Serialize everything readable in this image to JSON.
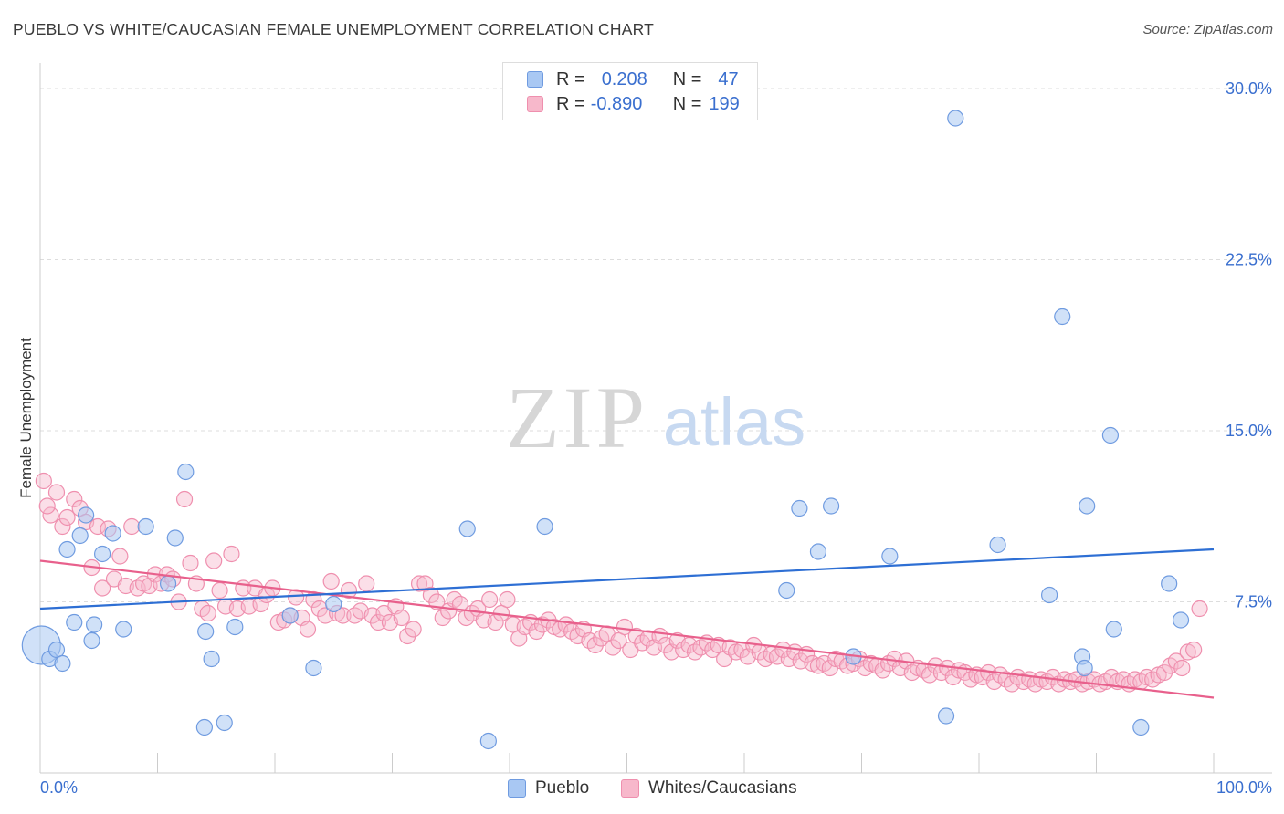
{
  "title": "PUEBLO VS WHITE/CAUCASIAN FEMALE UNEMPLOYMENT CORRELATION CHART",
  "source": "Source: ZipAtlas.com",
  "watermark": {
    "zip": "ZIP",
    "atlas": "atlas"
  },
  "legend": {
    "pueblo": {
      "r_label": "R =",
      "r_value": "0.208",
      "n_label": "N =",
      "n_value": "47"
    },
    "whites": {
      "r_label": "R =",
      "r_value": "-0.890",
      "n_label": "N =",
      "n_value": "199"
    }
  },
  "colors": {
    "pueblo_fill": "#a9c8f3",
    "pueblo_stroke": "#6f9be0",
    "pueblo_line": "#2e6fd4",
    "whites_fill": "#f7b8cb",
    "whites_stroke": "#ef8fae",
    "whites_line": "#e8608c",
    "axis_label": "#3a6fcf",
    "grid": "#dddddd"
  },
  "chart_data": {
    "type": "scatter",
    "title": "PUEBLO VS WHITE/CAUCASIAN FEMALE UNEMPLOYMENT CORRELATION CHART",
    "xlabel": "",
    "ylabel": "Female Unemployment",
    "xlim": [
      0,
      100
    ],
    "ylim": [
      0,
      30
    ],
    "x_tick_labels": [
      "0.0%",
      "100.0%"
    ],
    "y_ticks": [
      7.5,
      15.0,
      22.5,
      30.0
    ],
    "y_tick_labels": [
      "7.5%",
      "15.0%",
      "22.5%",
      "30.0%"
    ],
    "grid": true,
    "legend_position": "bottom-center",
    "series": [
      {
        "name": "Pueblo",
        "trend": {
          "x": [
            0,
            100
          ],
          "y": [
            7.2,
            9.8
          ]
        },
        "points": [
          [
            0.1,
            5.6
          ],
          [
            0.8,
            5.0
          ],
          [
            1.4,
            5.4
          ],
          [
            1.9,
            4.8
          ],
          [
            2.3,
            9.8
          ],
          [
            2.9,
            6.6
          ],
          [
            3.4,
            10.4
          ],
          [
            3.9,
            11.3
          ],
          [
            4.4,
            5.8
          ],
          [
            4.6,
            6.5
          ],
          [
            5.3,
            9.6
          ],
          [
            6.2,
            10.5
          ],
          [
            7.1,
            6.3
          ],
          [
            9.0,
            10.8
          ],
          [
            10.9,
            8.3
          ],
          [
            11.5,
            10.3
          ],
          [
            12.4,
            13.2
          ],
          [
            14.0,
            2.0
          ],
          [
            14.1,
            6.2
          ],
          [
            14.6,
            5.0
          ],
          [
            15.7,
            2.2
          ],
          [
            16.6,
            6.4
          ],
          [
            21.3,
            6.9
          ],
          [
            23.3,
            4.6
          ],
          [
            25.0,
            7.4
          ],
          [
            36.4,
            10.7
          ],
          [
            38.2,
            1.4
          ],
          [
            43.0,
            10.8
          ],
          [
            63.6,
            8.0
          ],
          [
            64.7,
            11.6
          ],
          [
            66.3,
            9.7
          ],
          [
            67.4,
            11.7
          ],
          [
            69.3,
            5.1
          ],
          [
            72.4,
            9.5
          ],
          [
            77.2,
            2.5
          ],
          [
            78.0,
            28.7
          ],
          [
            81.6,
            10.0
          ],
          [
            86.0,
            7.8
          ],
          [
            87.1,
            20.0
          ],
          [
            88.8,
            5.1
          ],
          [
            89.0,
            4.6
          ],
          [
            89.2,
            11.7
          ],
          [
            91.2,
            14.8
          ],
          [
            91.5,
            6.3
          ],
          [
            93.8,
            2.0
          ],
          [
            96.2,
            8.3
          ],
          [
            97.2,
            6.7
          ]
        ]
      },
      {
        "name": "Whites/Caucasians",
        "trend": {
          "x": [
            0,
            100
          ],
          "y": [
            9.3,
            3.3
          ]
        },
        "points": [
          [
            0.3,
            12.8
          ],
          [
            0.9,
            11.3
          ],
          [
            1.4,
            12.3
          ],
          [
            1.9,
            10.8
          ],
          [
            2.3,
            11.2
          ],
          [
            2.9,
            12.0
          ],
          [
            3.4,
            11.6
          ],
          [
            3.9,
            11.0
          ],
          [
            4.4,
            9.0
          ],
          [
            4.9,
            10.8
          ],
          [
            5.3,
            8.1
          ],
          [
            5.8,
            10.7
          ],
          [
            6.3,
            8.5
          ],
          [
            6.8,
            9.5
          ],
          [
            7.3,
            8.2
          ],
          [
            7.8,
            10.8
          ],
          [
            8.3,
            8.1
          ],
          [
            8.8,
            8.3
          ],
          [
            9.3,
            8.2
          ],
          [
            9.8,
            8.7
          ],
          [
            10.3,
            8.3
          ],
          [
            10.8,
            8.7
          ],
          [
            11.3,
            8.5
          ],
          [
            11.8,
            7.5
          ],
          [
            12.3,
            12.0
          ],
          [
            12.8,
            9.2
          ],
          [
            13.3,
            8.3
          ],
          [
            13.8,
            7.2
          ],
          [
            14.3,
            7.0
          ],
          [
            14.8,
            9.3
          ],
          [
            15.3,
            8.0
          ],
          [
            15.8,
            7.3
          ],
          [
            16.3,
            9.6
          ],
          [
            16.8,
            7.2
          ],
          [
            17.3,
            8.1
          ],
          [
            17.8,
            7.3
          ],
          [
            18.3,
            8.1
          ],
          [
            18.8,
            7.4
          ],
          [
            19.3,
            7.8
          ],
          [
            19.8,
            8.1
          ],
          [
            20.3,
            6.6
          ],
          [
            20.8,
            6.7
          ],
          [
            21.3,
            6.9
          ],
          [
            21.8,
            7.7
          ],
          [
            22.3,
            6.8
          ],
          [
            22.8,
            6.3
          ],
          [
            23.3,
            7.6
          ],
          [
            23.8,
            7.2
          ],
          [
            24.3,
            6.9
          ],
          [
            24.8,
            8.4
          ],
          [
            25.3,
            7.0
          ],
          [
            25.8,
            6.9
          ],
          [
            26.3,
            8.0
          ],
          [
            26.8,
            6.9
          ],
          [
            27.3,
            7.1
          ],
          [
            27.8,
            8.3
          ],
          [
            28.3,
            6.9
          ],
          [
            28.8,
            6.6
          ],
          [
            29.3,
            7.0
          ],
          [
            29.8,
            6.6
          ],
          [
            30.3,
            7.3
          ],
          [
            30.8,
            6.8
          ],
          [
            31.3,
            6.0
          ],
          [
            31.8,
            6.3
          ],
          [
            32.3,
            8.3
          ],
          [
            32.8,
            8.3
          ],
          [
            33.3,
            7.8
          ],
          [
            33.8,
            7.5
          ],
          [
            34.3,
            6.8
          ],
          [
            34.8,
            7.1
          ],
          [
            35.3,
            7.6
          ],
          [
            35.8,
            7.4
          ],
          [
            36.3,
            6.8
          ],
          [
            36.8,
            7.0
          ],
          [
            37.3,
            7.2
          ],
          [
            37.8,
            6.7
          ],
          [
            38.3,
            7.6
          ],
          [
            38.8,
            6.6
          ],
          [
            39.3,
            7.0
          ],
          [
            39.8,
            7.6
          ],
          [
            40.3,
            6.5
          ],
          [
            40.8,
            5.9
          ],
          [
            41.3,
            6.4
          ],
          [
            41.8,
            6.6
          ],
          [
            42.3,
            6.2
          ],
          [
            42.8,
            6.5
          ],
          [
            43.3,
            6.7
          ],
          [
            43.8,
            6.4
          ],
          [
            44.3,
            6.3
          ],
          [
            44.8,
            6.5
          ],
          [
            45.3,
            6.2
          ],
          [
            45.8,
            6.0
          ],
          [
            46.3,
            6.3
          ],
          [
            46.8,
            5.8
          ],
          [
            47.3,
            5.6
          ],
          [
            47.8,
            5.9
          ],
          [
            48.3,
            6.1
          ],
          [
            48.8,
            5.5
          ],
          [
            49.3,
            5.8
          ],
          [
            49.8,
            6.4
          ],
          [
            50.3,
            5.4
          ],
          [
            50.8,
            6.0
          ],
          [
            51.3,
            5.7
          ],
          [
            51.8,
            5.9
          ],
          [
            52.3,
            5.5
          ],
          [
            52.8,
            6.0
          ],
          [
            53.3,
            5.6
          ],
          [
            53.8,
            5.3
          ],
          [
            54.3,
            5.8
          ],
          [
            54.8,
            5.4
          ],
          [
            55.3,
            5.6
          ],
          [
            55.8,
            5.3
          ],
          [
            56.3,
            5.5
          ],
          [
            56.8,
            5.7
          ],
          [
            57.3,
            5.4
          ],
          [
            57.8,
            5.6
          ],
          [
            58.3,
            5.0
          ],
          [
            58.8,
            5.5
          ],
          [
            59.3,
            5.3
          ],
          [
            59.8,
            5.4
          ],
          [
            60.3,
            5.1
          ],
          [
            60.8,
            5.6
          ],
          [
            61.3,
            5.3
          ],
          [
            61.8,
            5.0
          ],
          [
            62.3,
            5.2
          ],
          [
            62.8,
            5.1
          ],
          [
            63.3,
            5.4
          ],
          [
            63.8,
            5.0
          ],
          [
            64.3,
            5.3
          ],
          [
            64.8,
            4.9
          ],
          [
            65.3,
            5.2
          ],
          [
            65.8,
            4.8
          ],
          [
            66.3,
            4.7
          ],
          [
            66.8,
            4.8
          ],
          [
            67.3,
            4.6
          ],
          [
            67.8,
            5.0
          ],
          [
            68.3,
            4.9
          ],
          [
            68.8,
            4.7
          ],
          [
            69.3,
            4.8
          ],
          [
            69.8,
            5.0
          ],
          [
            70.3,
            4.6
          ],
          [
            70.8,
            4.8
          ],
          [
            71.3,
            4.7
          ],
          [
            71.8,
            4.5
          ],
          [
            72.3,
            4.8
          ],
          [
            72.8,
            5.0
          ],
          [
            73.3,
            4.6
          ],
          [
            73.8,
            4.9
          ],
          [
            74.3,
            4.4
          ],
          [
            74.8,
            4.6
          ],
          [
            75.3,
            4.5
          ],
          [
            75.8,
            4.3
          ],
          [
            76.3,
            4.7
          ],
          [
            76.8,
            4.4
          ],
          [
            77.3,
            4.6
          ],
          [
            77.8,
            4.2
          ],
          [
            78.3,
            4.5
          ],
          [
            78.8,
            4.4
          ],
          [
            79.3,
            4.1
          ],
          [
            79.8,
            4.3
          ],
          [
            80.3,
            4.2
          ],
          [
            80.8,
            4.4
          ],
          [
            81.3,
            4.0
          ],
          [
            81.8,
            4.3
          ],
          [
            82.3,
            4.1
          ],
          [
            82.8,
            3.9
          ],
          [
            83.3,
            4.2
          ],
          [
            83.8,
            4.0
          ],
          [
            84.3,
            4.1
          ],
          [
            84.8,
            3.9
          ],
          [
            85.3,
            4.1
          ],
          [
            85.8,
            4.0
          ],
          [
            86.3,
            4.2
          ],
          [
            86.8,
            3.9
          ],
          [
            87.3,
            4.1
          ],
          [
            87.8,
            4.0
          ],
          [
            88.3,
            4.1
          ],
          [
            88.8,
            3.9
          ],
          [
            89.3,
            4.0
          ],
          [
            89.8,
            4.1
          ],
          [
            90.3,
            3.9
          ],
          [
            90.8,
            4.0
          ],
          [
            91.3,
            4.2
          ],
          [
            91.8,
            4.0
          ],
          [
            92.3,
            4.1
          ],
          [
            92.8,
            3.9
          ],
          [
            93.3,
            4.1
          ],
          [
            93.8,
            4.0
          ],
          [
            94.3,
            4.2
          ],
          [
            94.8,
            4.1
          ],
          [
            95.3,
            4.3
          ],
          [
            95.8,
            4.4
          ],
          [
            96.3,
            4.7
          ],
          [
            96.8,
            4.9
          ],
          [
            97.3,
            4.6
          ],
          [
            97.8,
            5.3
          ],
          [
            98.3,
            5.4
          ],
          [
            98.8,
            7.2
          ],
          [
            0.6,
            11.7
          ]
        ]
      }
    ]
  }
}
